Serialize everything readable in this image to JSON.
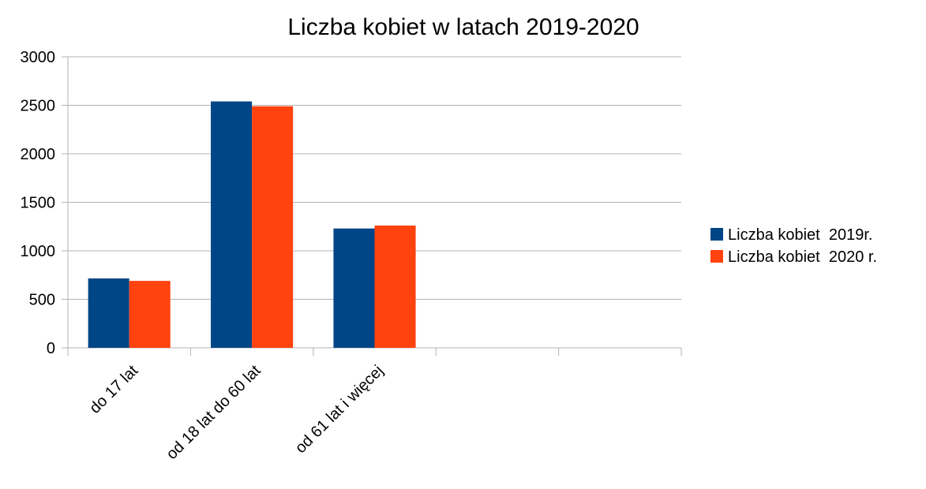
{
  "chart_data": {
    "type": "bar",
    "title": "Liczba kobiet w latach 2019-2020",
    "categories": [
      "do 17 lat",
      "od 18 lat do 60 lat",
      "od 61 lat i więcej",
      null,
      null
    ],
    "series": [
      {
        "name": "Liczba kobiet  2019r.",
        "color": "#004586",
        "values": [
          715,
          2540,
          1230,
          null,
          null
        ]
      },
      {
        "name": "Liczba kobiet  2020 r.",
        "color": "#ff420e",
        "values": [
          690,
          2490,
          1260,
          null,
          null
        ]
      }
    ],
    "ylim": [
      0,
      3000
    ],
    "yticks": [
      0,
      500,
      1000,
      1500,
      2000,
      2500,
      3000
    ],
    "grid": true,
    "legend": "right"
  }
}
